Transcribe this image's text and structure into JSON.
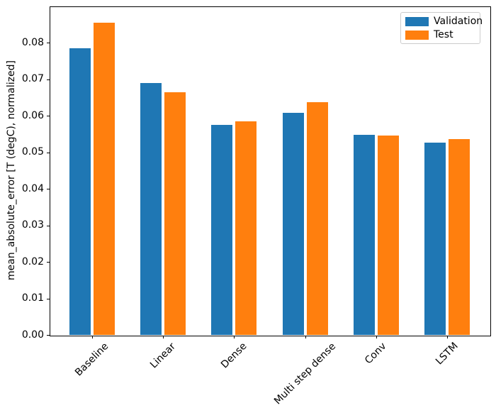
{
  "chart_data": {
    "type": "bar",
    "title": "",
    "xlabel": "",
    "ylabel": "mean_absolute_error [T (degC), normalized]",
    "categories": [
      "Baseline",
      "Linear",
      "Dense",
      "Multi step dense",
      "Conv",
      "LSTM"
    ],
    "series": [
      {
        "name": "Validation",
        "color": "#1f77b4",
        "values": [
          0.0786,
          0.069,
          0.0575,
          0.0609,
          0.0548,
          0.0527
        ]
      },
      {
        "name": "Test",
        "color": "#ff7f0e",
        "values": [
          0.0855,
          0.0665,
          0.0586,
          0.0638,
          0.0546,
          0.0537
        ]
      }
    ],
    "ylim": [
      0,
      0.09
    ],
    "ytick_values": [
      0.0,
      0.01,
      0.02,
      0.03,
      0.04,
      0.05,
      0.06,
      0.07,
      0.08
    ],
    "ytick_labels": [
      "0.00",
      "0.01",
      "0.02",
      "0.03",
      "0.04",
      "0.05",
      "0.06",
      "0.07",
      "0.08"
    ],
    "xtick_rotation_deg": 45,
    "grid": false,
    "legend": {
      "position": "upper right",
      "entries": [
        "Validation",
        "Test"
      ]
    }
  }
}
